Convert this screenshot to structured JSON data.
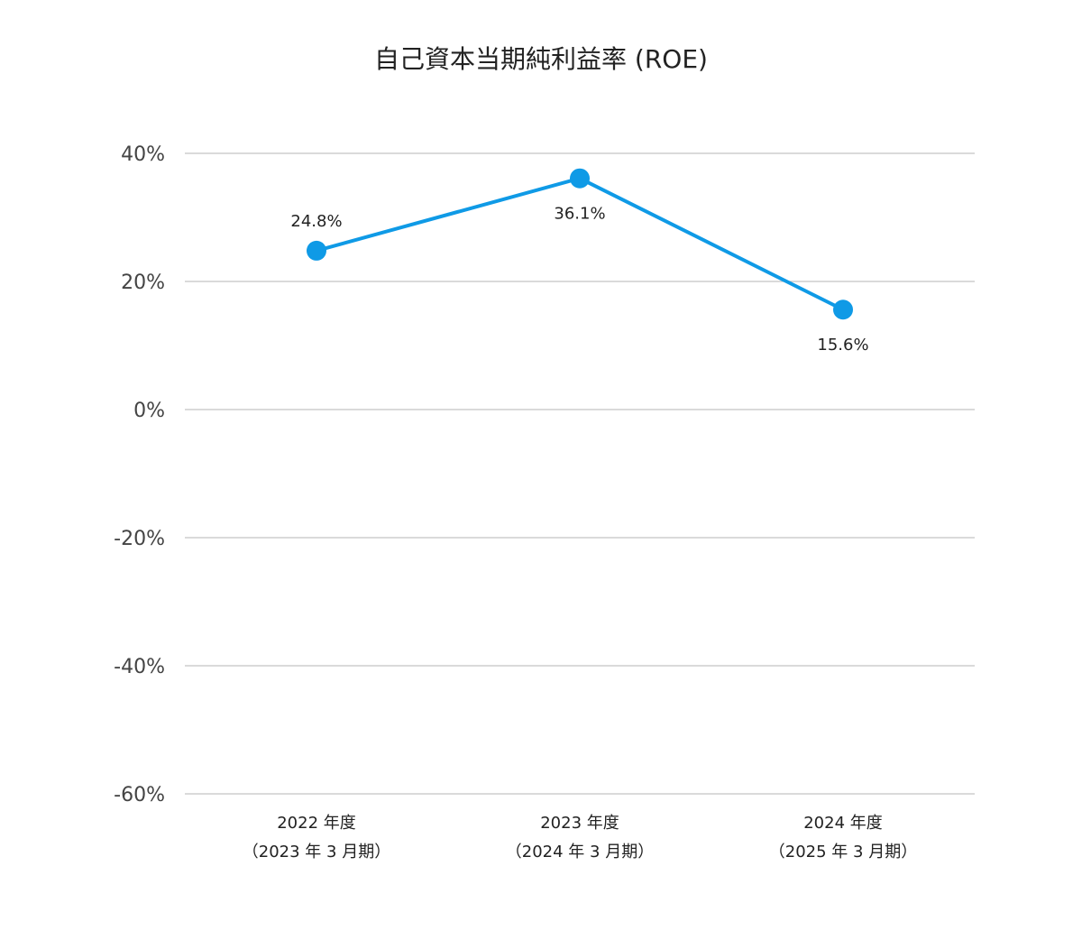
{
  "chart_data": {
    "type": "line",
    "title": "自己資本当期純利益率 (ROE)",
    "xlabel": "",
    "ylabel": "",
    "ylim": [
      -60,
      40
    ],
    "yticks": [
      40,
      20,
      0,
      -20,
      -40,
      -60
    ],
    "ytick_labels": [
      "40%",
      "20%",
      "0%",
      "-20%",
      "-40%",
      "-60%"
    ],
    "grid": true,
    "categories": [
      {
        "line1": "2022 年度",
        "line2": "（2023 年 3 月期）"
      },
      {
        "line1": "2023 年度",
        "line2": "（2024 年 3 月期）"
      },
      {
        "line1": "2024 年度",
        "line2": "（2025 年 3 月期）"
      }
    ],
    "series": [
      {
        "values": [
          24.8,
          36.1,
          15.6
        ],
        "labels": [
          "24.8%",
          "36.1%",
          "15.6%"
        ],
        "label_positions": [
          "above",
          "below",
          "below"
        ],
        "color": "#0f9ae6"
      }
    ]
  }
}
